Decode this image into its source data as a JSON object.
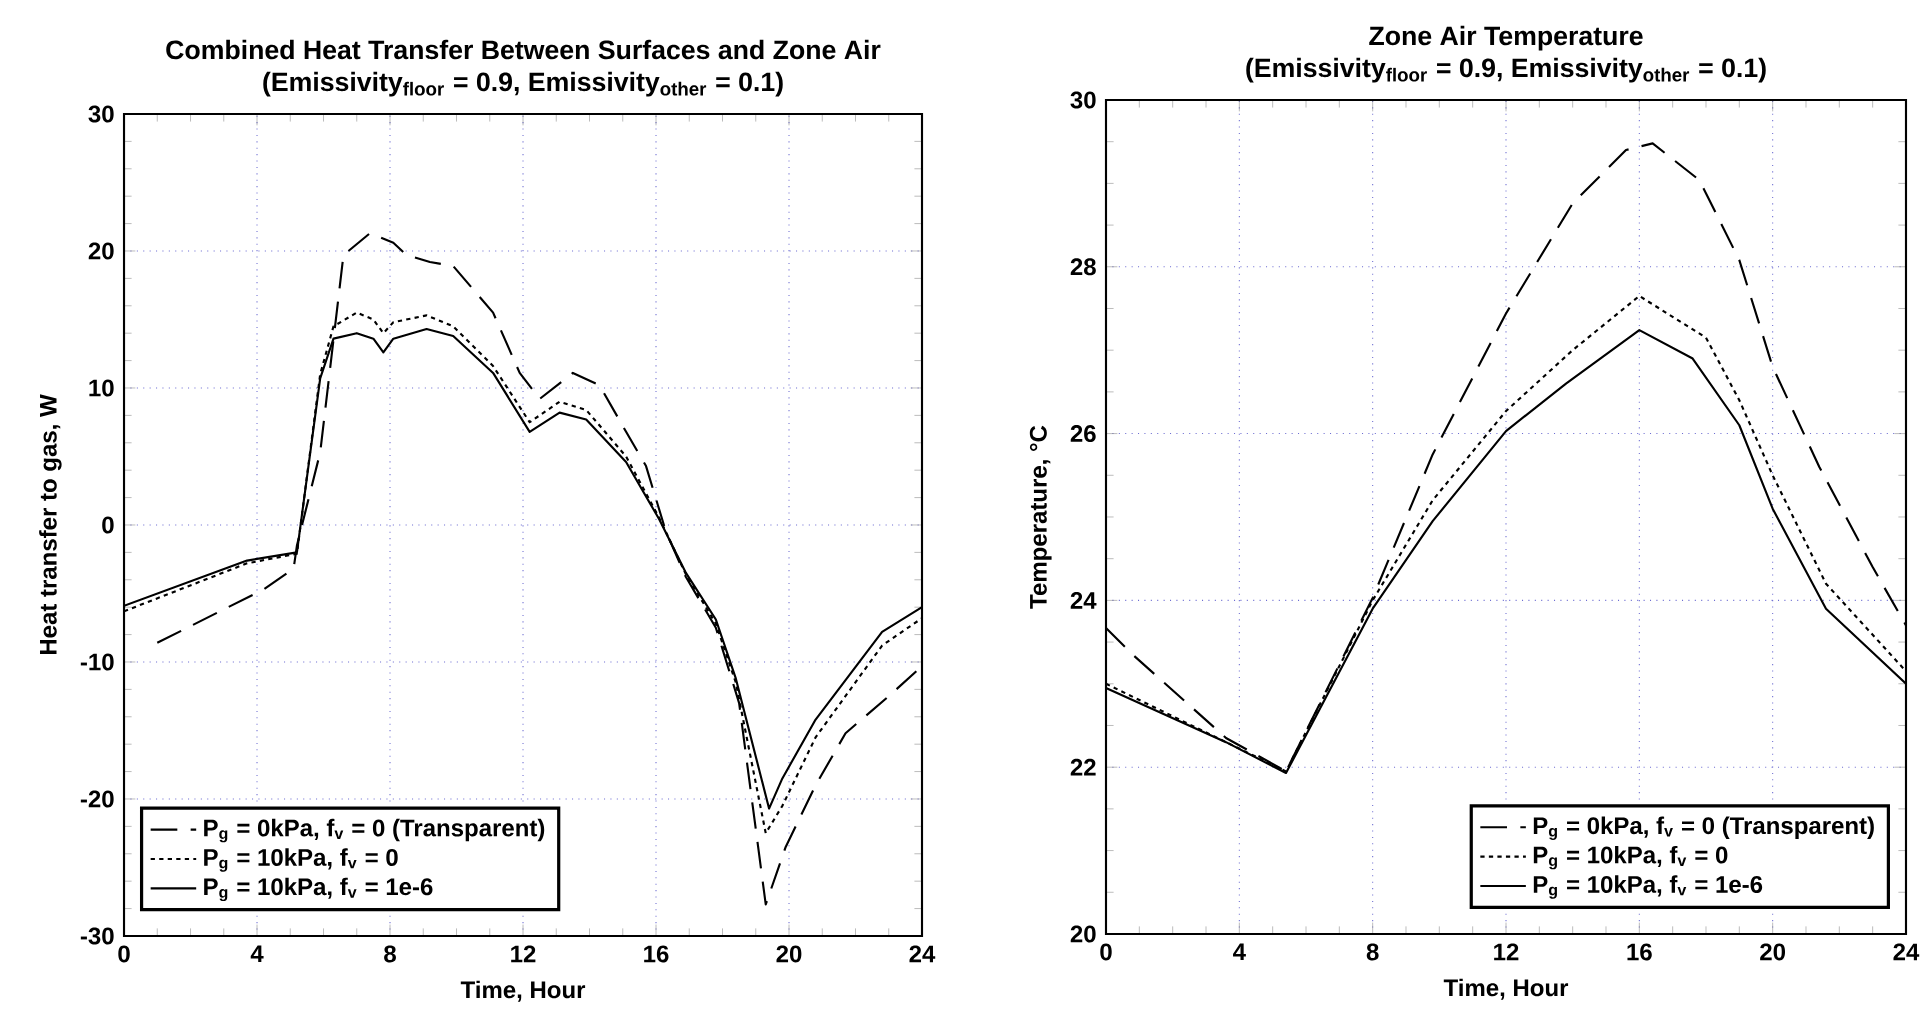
{
  "chart_data": [
    {
      "type": "line",
      "title": "Combined Heat Transfer Between Surfaces and Zone Air",
      "subtitle": "(Emissivity$_{floor}$ = 0.9, Emissivity$_{other}$ = 0.1)",
      "xlabel": "Time, Hour",
      "ylabel": "Heat transfer to gas, W",
      "xlim": [
        0,
        24
      ],
      "ylim": [
        -30,
        30
      ],
      "xticks": [
        0,
        4,
        8,
        12,
        16,
        20,
        24
      ],
      "yticks": [
        -30,
        -20,
        -10,
        0,
        10,
        20,
        30
      ],
      "grid": true,
      "legend": "bottom left",
      "series": [
        {
          "name": "P$_{g}$ = 0kPa, f$_{v}$ = 0 (Transparent)",
          "color": "#000000",
          "line_style": "dashed",
          "x": [
            1.0,
            4.2,
            5.1,
            5.2,
            5.9,
            6.6,
            7.4,
            8.1,
            8.5,
            9.2,
            9.9,
            11.1,
            11.9,
            12.5,
            13.5,
            14.3,
            15.1,
            15.7,
            16.3,
            16.9,
            17.8,
            18.5,
            19.3,
            19.9,
            20.8,
            21.7,
            23.0,
            24.0
          ],
          "values": [
            -8.6,
            -4.7,
            -3.2,
            -1.5,
            5.3,
            19.7,
            21.3,
            20.6,
            19.7,
            19.2,
            18.9,
            15.5,
            11.1,
            9.2,
            11.1,
            10.2,
            6.8,
            4.3,
            -0.5,
            -3.8,
            -7.5,
            -13.0,
            -27.7,
            -23.5,
            -19.0,
            -15.2,
            -12.5,
            -10.3
          ]
        },
        {
          "name": "P$_{g}$ = 10kPa, f$_{v}$ = 0",
          "color": "#000000",
          "line_style": "dotted",
          "x": [
            0,
            3.7,
            5.2,
            5.9,
            6.3,
            7.0,
            7.5,
            7.8,
            8.1,
            9.1,
            9.9,
            11.1,
            12.2,
            13.1,
            13.9,
            15.1,
            16.1,
            16.9,
            17.8,
            18.4,
            19.3,
            19.8,
            20.8,
            22.8,
            24.0
          ],
          "values": [
            -6.3,
            -2.8,
            -2.1,
            11.0,
            14.5,
            15.5,
            15.0,
            14.0,
            14.8,
            15.3,
            14.5,
            11.6,
            7.5,
            9.0,
            8.4,
            5.0,
            0.5,
            -3.6,
            -7.2,
            -11.5,
            -22.5,
            -20.5,
            -15.5,
            -8.8,
            -6.8
          ]
        },
        {
          "name": "P$_{g}$ = 10kPa, f$_{v}$ = 1e-6",
          "color": "#000000",
          "line_style": "solid",
          "x": [
            0,
            3.7,
            5.2,
            5.9,
            6.3,
            7.0,
            7.5,
            7.8,
            8.1,
            9.1,
            9.9,
            11.1,
            12.2,
            13.1,
            13.9,
            15.1,
            16.1,
            16.9,
            17.8,
            18.4,
            19.4,
            19.8,
            20.8,
            22.8,
            24.0
          ],
          "values": [
            -5.9,
            -2.6,
            -2.0,
            10.7,
            13.6,
            14.0,
            13.6,
            12.6,
            13.6,
            14.3,
            13.8,
            11.1,
            6.8,
            8.2,
            7.7,
            4.6,
            0.4,
            -3.5,
            -6.9,
            -11.2,
            -20.7,
            -18.5,
            -14.2,
            -7.8,
            -6.0
          ]
        }
      ]
    },
    {
      "type": "line",
      "title": "Zone Air Temperature",
      "subtitle": "(Emissivity$_{floor}$ = 0.9, Emissivity$_{other}$ = 0.1)",
      "xlabel": "Time, Hour",
      "ylabel": "Temperature, °C",
      "xlim": [
        0,
        24
      ],
      "ylim": [
        20,
        30
      ],
      "xticks": [
        0,
        4,
        8,
        12,
        16,
        20,
        24
      ],
      "yticks": [
        20,
        22,
        24,
        26,
        28,
        30
      ],
      "grid": true,
      "legend": "bottom right",
      "series": [
        {
          "name": "P$_{g}$ = 0kPa, f$_{v}$ = 0 (Transparent)",
          "color": "#000000",
          "line_style": "dashed",
          "x": [
            0,
            0.8,
            3.6,
            5.4,
            8.0,
            9.8,
            12.0,
            14.0,
            15.6,
            16.4,
            17.8,
            19.0,
            20.0,
            21.4,
            23.0,
            24.0
          ],
          "values": [
            23.67,
            23.35,
            22.35,
            21.95,
            24.03,
            25.75,
            27.44,
            28.76,
            29.4,
            29.48,
            29.04,
            28.08,
            26.8,
            25.6,
            24.4,
            23.7
          ]
        },
        {
          "name": "P$_{g}$ = 10kPa, f$_{v}$ = 0",
          "color": "#000000",
          "line_style": "dotted",
          "x": [
            0,
            3.6,
            5.4,
            8.0,
            9.8,
            12.0,
            14.0,
            16.0,
            18.0,
            19.0,
            20.0,
            21.6,
            24.0
          ],
          "values": [
            23.0,
            22.3,
            21.95,
            24.0,
            25.2,
            26.27,
            27.0,
            27.65,
            27.15,
            26.4,
            25.5,
            24.2,
            23.15
          ]
        },
        {
          "name": "P$_{g}$ = 10kPa, f$_{v}$ = 1e-6",
          "color": "#000000",
          "line_style": "solid",
          "x": [
            0,
            3.6,
            5.4,
            8.0,
            9.8,
            12.0,
            13.8,
            16.0,
            17.6,
            19.0,
            20.0,
            21.6,
            24.0
          ],
          "values": [
            22.95,
            22.3,
            21.93,
            23.9,
            24.95,
            26.03,
            26.6,
            27.24,
            26.9,
            26.1,
            25.1,
            23.9,
            23.0
          ]
        }
      ]
    }
  ]
}
